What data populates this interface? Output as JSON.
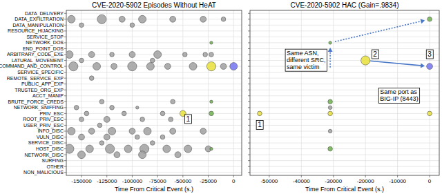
{
  "chart_data": [
    {
      "type": "scatter",
      "title": "CVE-2020-5902 Episodes Without HeAT",
      "x_label": "Time From Critical Event (s.)",
      "categories": [
        "DATA_DELIVERY",
        "DATA_EXFILTRATION",
        "DATA_MANIPULATION",
        "RESOURCE_HIJACKING",
        "SERVICE_STOP",
        "NETWORK_DOS",
        "END_POINT_DOS",
        "ARBITRARY_CODE_EXE",
        "LATURAL_MOVEMENT",
        "COMMAND_AND_CONTROL",
        "SERVICE_SPECIFIC",
        "REMOTE_SERVICE_EXP",
        "PUBLIC_APP_EXP",
        "TRUSTED_ORG_EXP",
        "ACCT_MANIP",
        "BRUTE_FORCE_CREDS",
        "NETWORK_SNIFFING",
        "PRIV_ESC",
        "ROOT_PRIV_ESC",
        "USER_PRIV_ESC",
        "INFO_DISC",
        "VULN_DISC",
        "SERVICE_DISC",
        "HOST_DISC",
        "NETWORK_DISC",
        "SURFING",
        "OTHER",
        "NON_MALICIOUS"
      ],
      "xlim": [
        -165000,
        8000
      ],
      "xticks": [
        -150000,
        -125000,
        -100000,
        -75000,
        -50000,
        -25000,
        0
      ],
      "grid": true,
      "series": [
        {
          "color": "#a0a0a0",
          "x": [
            -160000,
            -130000,
            -110000,
            -90000,
            -60000,
            -30000,
            -10000,
            -150000,
            -100000,
            -162000,
            -140000,
            -120000,
            -100000,
            -75000,
            -48000,
            -28000,
            -22000,
            -150000,
            -80000,
            -158000,
            -135000,
            -118000,
            -100000,
            -82000,
            -65000,
            -40000,
            -10000,
            -140000,
            -130000,
            -60000,
            -155000,
            -120000,
            -95000,
            -145000,
            -108000,
            -70000,
            -150000,
            -125000,
            -90000,
            -62000,
            -132000,
            -160000,
            -140000,
            -120000,
            -100000,
            -85000,
            -60000,
            -30000,
            -150000,
            -125000,
            -95000,
            -70000,
            -130000,
            -80000,
            -162000,
            -142000,
            -122000,
            -104000,
            -88000,
            -66000,
            -45000,
            -25000,
            -150000,
            -115000,
            -90000,
            -55000
          ],
          "values": [
            "DATA_EXFILTRATION",
            "DATA_EXFILTRATION",
            "DATA_EXFILTRATION",
            "DATA_EXFILTRATION",
            "DATA_EXFILTRATION",
            "DATA_EXFILTRATION",
            "DATA_EXFILTRATION",
            "DATA_MANIPULATION",
            "DATA_MANIPULATION",
            "ARBITRARY_CODE_EXE",
            "ARBITRARY_CODE_EXE",
            "ARBITRARY_CODE_EXE",
            "ARBITRARY_CODE_EXE",
            "ARBITRARY_CODE_EXE",
            "ARBITRARY_CODE_EXE",
            "ARBITRARY_CODE_EXE",
            "ARBITRARY_CODE_EXE",
            "LATURAL_MOVEMENT",
            "LATURAL_MOVEMENT",
            "COMMAND_AND_CONTROL",
            "COMMAND_AND_CONTROL",
            "COMMAND_AND_CONTROL",
            "COMMAND_AND_CONTROL",
            "COMMAND_AND_CONTROL",
            "COMMAND_AND_CONTROL",
            "COMMAND_AND_CONTROL",
            "COMMAND_AND_CONTROL",
            "REMOTE_SERVICE_EXP",
            "BRUTE_FORCE_CREDS",
            "BRUTE_FORCE_CREDS",
            "NETWORK_SNIFFING",
            "NETWORK_SNIFFING",
            "NETWORK_SNIFFING",
            "PRIV_ESC",
            "PRIV_ESC",
            "PRIV_ESC",
            "ROOT_PRIV_ESC",
            "ROOT_PRIV_ESC",
            "ROOT_PRIV_ESC",
            "ROOT_PRIV_ESC",
            "USER_PRIV_ESC",
            "INFO_DISC",
            "INFO_DISC",
            "INFO_DISC",
            "INFO_DISC",
            "INFO_DISC",
            "INFO_DISC",
            "INFO_DISC",
            "VULN_DISC",
            "VULN_DISC",
            "VULN_DISC",
            "VULN_DISC",
            "SERVICE_DISC",
            "SERVICE_DISC",
            "HOST_DISC",
            "HOST_DISC",
            "HOST_DISC",
            "HOST_DISC",
            "HOST_DISC",
            "HOST_DISC",
            "HOST_DISC",
            "HOST_DISC",
            "NETWORK_DISC",
            "NETWORK_DISC",
            "NETWORK_DISC",
            "NETWORK_DISC"
          ],
          "sizes": [
            5,
            6,
            4,
            5,
            4,
            4,
            3,
            3,
            3,
            5,
            4,
            3,
            4,
            5,
            3,
            3,
            3,
            3,
            3,
            6,
            5,
            4,
            6,
            5,
            4,
            5,
            4,
            3,
            3,
            3,
            3,
            3,
            2,
            3,
            3,
            3,
            3,
            4,
            3,
            3,
            3,
            5,
            4,
            5,
            4,
            5,
            4,
            4,
            4,
            4,
            3,
            3,
            3,
            3,
            6,
            5,
            6,
            5,
            6,
            5,
            5,
            4,
            5,
            4,
            5,
            4
          ]
        },
        {
          "color": "#e8e03a",
          "x": [
            -50000,
            -22000
          ],
          "values": [
            "PRIV_ESC",
            "COMMAND_AND_CONTROL"
          ],
          "sizes": [
            4,
            6
          ]
        },
        {
          "color": "#6fb24e",
          "x": [
            -22000,
            -22000,
            -22000,
            -22000
          ],
          "values": [
            "NETWORK_DOS",
            "BRUTE_FORCE_CREDS",
            "PRIV_ESC",
            "HOST_DISC"
          ],
          "sizes": [
            2,
            2,
            3,
            2
          ]
        },
        {
          "color": "#7474f2",
          "x": [
            0
          ],
          "values": [
            "COMMAND_AND_CONTROL"
          ],
          "sizes": [
            5
          ]
        }
      ],
      "annotations": [
        {
          "text": [
            "1"
          ],
          "x": -45000,
          "y": "ROOT_PRIV_ESC"
        }
      ]
    },
    {
      "type": "scatter",
      "title": "CVE-2020-5902 HAC (Gain=.9834)",
      "x_label": "Time From Critical Event (s.)",
      "categories": [
        "DATA_DELIVERY",
        "DATA_EXFILTRATION",
        "DATA_MANIPULATION",
        "RESOURCE_HIJACKING",
        "SERVICE_STOP",
        "NETWORK_DOS",
        "END_POINT_DOS",
        "ARBITRARY_CODE_EXE",
        "LATURAL_MOVEMENT",
        "COMMAND_AND_CONTROL",
        "SERVICE_SPECIFIC",
        "REMOTE_SERVICE_EXP",
        "PUBLIC_APP_EXP",
        "TRUSTED_ORG_EXP",
        "ACCT_MANIP",
        "BRUTE_FORCE_CREDS",
        "NETWORK_SNIFFING",
        "PRIV_ESC",
        "ROOT_PRIV_ESC",
        "USER_PRIV_ESC",
        "INFO_DISC",
        "VULN_DISC",
        "SERVICE_DISC",
        "HOST_DISC",
        "NETWORK_DISC",
        "SURFING",
        "OTHER",
        "NON_MALICIOUS"
      ],
      "xlim": [
        -56000,
        3000
      ],
      "xticks": [
        -50000,
        -40000,
        -30000,
        -20000,
        -10000,
        0
      ],
      "grid": true,
      "tick_labels": "x",
      "series": [
        {
          "color": "#a0a0a0",
          "x": [
            -31000,
            -31000
          ],
          "values": [
            "NETWORK_SNIFFING",
            "INFO_DISC"
          ],
          "sizes": [
            2.5,
            2.5
          ]
        },
        {
          "color": "#e8e03a",
          "x": [
            -53000,
            -31000,
            -20000,
            0
          ],
          "values": [
            "PRIV_ESC",
            "PRIV_ESC",
            "LATURAL_MOVEMENT",
            "PRIV_ESC"
          ],
          "sizes": [
            3,
            3,
            6,
            3
          ]
        },
        {
          "color": "#6fb24e",
          "x": [
            -31000,
            -31000,
            -31000,
            0
          ],
          "values": [
            "NETWORK_DOS",
            "BRUTE_FORCE_CREDS",
            "HOST_DISC",
            "DATA_EXFILTRATION"
          ],
          "sizes": [
            2,
            3,
            3,
            3
          ]
        },
        {
          "color": "#7474f2",
          "x": [
            0
          ],
          "values": [
            "COMMAND_AND_CONTROL"
          ],
          "sizes": [
            4
          ]
        }
      ],
      "annotations": [
        {
          "text": [
            "1"
          ],
          "x": -53000,
          "y": "USER_PRIV_ESC"
        },
        {
          "text": [
            "2"
          ],
          "x": -17000,
          "y": "ARBITRARY_CODE_EXE"
        },
        {
          "text": [
            "3"
          ],
          "x": 0,
          "y": "ARBITRARY_CODE_EXE"
        },
        {
          "text": [
            "Same ASN,",
            "different SRC,",
            "same victim"
          ],
          "x": -38500,
          "y": "LATURAL_MOVEMENT"
        },
        {
          "text": [
            "Same port as",
            "BIG-IP (8443)"
          ],
          "x": -9500,
          "y": "ACCT_MANIP"
        },
        {
          "from": [
            -31000,
            "SERVICE_SPECIFIC"
          ],
          "to": [
            -31000,
            "NETWORK_DOS"
          ],
          "line_style": "dotted",
          "color": "#4a78c8"
        },
        {
          "from": [
            -31000,
            "NETWORK_DOS"
          ],
          "to": [
            0,
            "DATA_EXFILTRATION"
          ],
          "line_style": "dotted",
          "color": "#4a78c8"
        },
        {
          "from": [
            -20000,
            "LATURAL_MOVEMENT"
          ],
          "to": [
            0,
            "COMMAND_AND_CONTROL"
          ],
          "line_style": "solid",
          "color": "#4a78c8"
        }
      ]
    }
  ]
}
